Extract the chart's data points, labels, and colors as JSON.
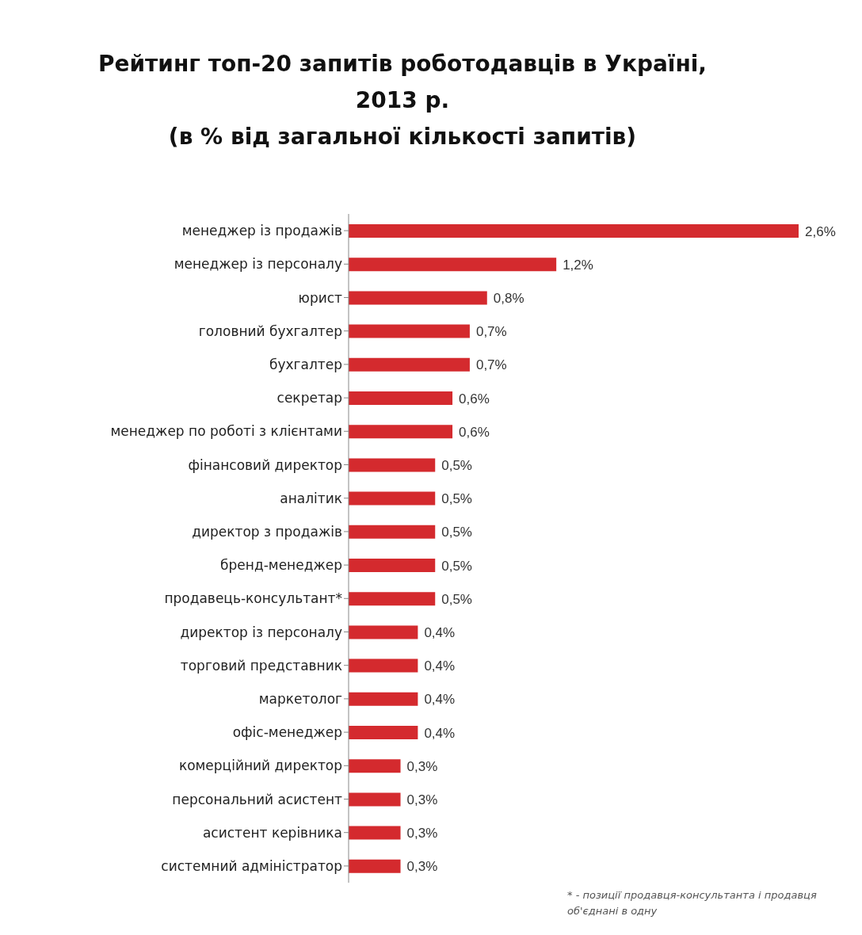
{
  "chart_data": {
    "type": "bar",
    "orientation": "horizontal",
    "title": "Рейтинг топ-20 запитів роботодавців в Україні,\n2013 р.\n(в % від загальної кількості запитів)",
    "categories": [
      "менеджер із продажів",
      "менеджер із персоналу",
      "юрист",
      "головний бухгалтер",
      "бухгалтер",
      "секретар",
      "менеджер по роботі з клієнтами",
      "фінансовий директор",
      "аналітик",
      "директор з продажів",
      "бренд-менеджер",
      "продавець-консультант*",
      "директор із персоналу",
      "торговий представник",
      "маркетолог",
      "офіс-менеджер",
      "комерційний директор",
      "персональний асистент",
      "асистент керівника",
      "системний адміністратор"
    ],
    "values": [
      2.6,
      1.2,
      0.8,
      0.7,
      0.7,
      0.6,
      0.6,
      0.5,
      0.5,
      0.5,
      0.5,
      0.5,
      0.4,
      0.4,
      0.4,
      0.4,
      0.3,
      0.3,
      0.3,
      0.3
    ],
    "value_labels": [
      "2,6%",
      "1,2%",
      "0,8%",
      "0,7%",
      "0,7%",
      "0,6%",
      "0,6%",
      "0,5%",
      "0,5%",
      "0,5%",
      "0,5%",
      "0,5%",
      "0,4%",
      "0,4%",
      "0,4%",
      "0,4%",
      "0,3%",
      "0,3%",
      "0,3%",
      "0,3%"
    ],
    "color": "#d42a2e",
    "tick_labels": "y",
    "annotations": [
      "* - позиції продавця-консультанта і продавця об'єднані в одну"
    ]
  }
}
